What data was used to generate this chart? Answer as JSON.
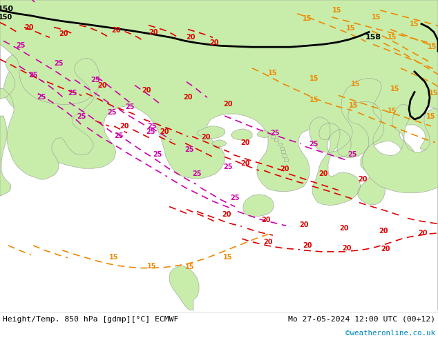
{
  "title_left": "Height/Temp. 850 hPa [gdmp][°C] ECMWF",
  "title_right": "Mo 27-05-2024 12:00 UTC (00+12)",
  "copyright": "©weatheronline.co.uk",
  "ocean_color": "#e8e8e8",
  "land_color": "#c8edaa",
  "land_edge": "#999999",
  "fig_width": 6.34,
  "fig_height": 4.9,
  "dpi": 100
}
